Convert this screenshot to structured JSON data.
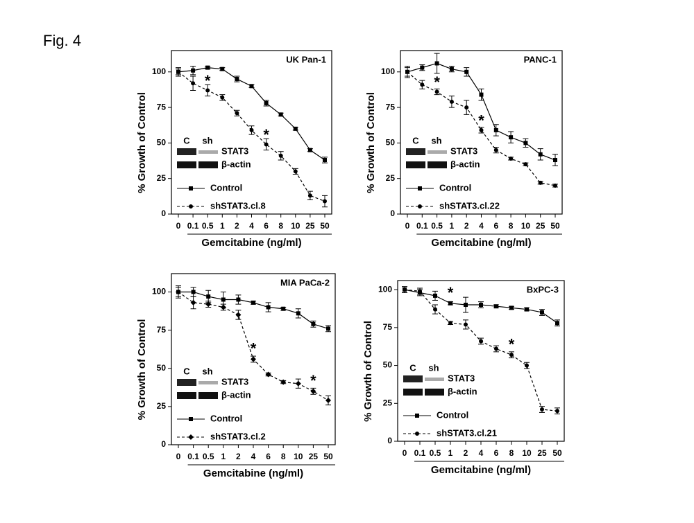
{
  "figure_label": "Fig. 4",
  "chart_data": [
    {
      "type": "line",
      "title": "UK Pan-1",
      "ylabel": "% Growth of Control",
      "xlabel": "Gemcitabine (ng/ml)",
      "categories": [
        "0",
        "0.1",
        "0.5",
        "1",
        "2",
        "4",
        "6",
        "8",
        "10",
        "25",
        "50"
      ],
      "ylim": [
        0,
        115
      ],
      "yticks": [
        0,
        25,
        50,
        75,
        100
      ],
      "series": [
        {
          "name": "Control",
          "color": "#000000",
          "marker": "square",
          "dashed": false,
          "values": [
            100,
            101,
            103,
            102,
            95,
            90,
            78,
            70,
            60,
            45,
            38
          ],
          "errors": [
            3,
            3,
            1,
            1,
            2,
            1,
            2,
            1,
            1,
            1,
            2
          ]
        },
        {
          "name": "shSTAT3.cl.8",
          "color": "#000000",
          "marker": "circle",
          "dashed": true,
          "values": [
            100,
            92,
            87,
            82,
            71,
            59,
            49,
            41,
            30,
            13,
            9
          ],
          "errors": [
            2,
            5,
            4,
            2,
            2,
            3,
            4,
            3,
            2,
            3,
            4
          ]
        }
      ],
      "annotations": [
        {
          "text": "*",
          "x": "0.5"
        },
        {
          "text": "*",
          "x": "6"
        }
      ],
      "blot": {
        "lanes": [
          "C",
          "sh"
        ],
        "bands": [
          "STAT3",
          "β-actin"
        ]
      }
    },
    {
      "type": "line",
      "title": "PANC-1",
      "ylabel": "% Growth of Control",
      "xlabel": "Gemcitabine (ng/ml)",
      "categories": [
        "0",
        "0.1",
        "0.5",
        "1",
        "2",
        "4",
        "6",
        "8",
        "10",
        "25",
        "50"
      ],
      "ylim": [
        0,
        115
      ],
      "yticks": [
        0,
        25,
        50,
        75,
        100
      ],
      "series": [
        {
          "name": "Control",
          "color": "#000000",
          "marker": "square",
          "dashed": false,
          "values": [
            100,
            103,
            106,
            102,
            100,
            84,
            59,
            54,
            50,
            42,
            38
          ],
          "errors": [
            4,
            2,
            7,
            2,
            3,
            4,
            4,
            4,
            3,
            4,
            4
          ]
        },
        {
          "name": "shSTAT3.cl.22",
          "color": "#000000",
          "marker": "circle",
          "dashed": true,
          "values": [
            100,
            91,
            86,
            79,
            75,
            59,
            45,
            39,
            35,
            22,
            20
          ],
          "errors": [
            3,
            3,
            2,
            4,
            5,
            2,
            2,
            1,
            1,
            1,
            1
          ]
        }
      ],
      "annotations": [
        {
          "text": "*",
          "x": "0.5"
        },
        {
          "text": "*",
          "x": "4"
        }
      ],
      "blot": {
        "lanes": [
          "C",
          "sh"
        ],
        "bands": [
          "STAT3",
          "β-actin"
        ]
      }
    },
    {
      "type": "line",
      "title": "MIA PaCa-2",
      "ylabel": "% Growth of Control",
      "xlabel": "Gemcitabine (ng/ml)",
      "categories": [
        "0",
        "0.1",
        "0.5",
        "1",
        "2",
        "4",
        "6",
        "8",
        "10",
        "25",
        "50"
      ],
      "ylim": [
        0,
        112
      ],
      "yticks": [
        0,
        25,
        50,
        75,
        100
      ],
      "series": [
        {
          "name": "Control",
          "color": "#000000",
          "marker": "square",
          "dashed": false,
          "values": [
            100,
            100,
            97,
            95,
            95,
            93,
            90,
            89,
            86,
            79,
            76
          ],
          "errors": [
            4,
            3,
            4,
            5,
            3,
            1,
            3,
            1,
            3,
            2,
            2
          ]
        },
        {
          "name": "shSTAT3.cl.2",
          "color": "#000000",
          "marker": "diamond",
          "dashed": true,
          "values": [
            100,
            93,
            92,
            90,
            85,
            56,
            46,
            41,
            40,
            35,
            29
          ],
          "errors": [
            3,
            4,
            2,
            2,
            3,
            2,
            1,
            1,
            3,
            2,
            3
          ]
        }
      ],
      "annotations": [
        {
          "text": "*",
          "x": "4"
        },
        {
          "text": "*",
          "x": "25"
        }
      ],
      "blot": {
        "lanes": [
          "C",
          "sh"
        ],
        "bands": [
          "STAT3",
          "β-actin"
        ]
      }
    },
    {
      "type": "line",
      "title": "BxPC-3",
      "ylabel": "% Growth of Control",
      "xlabel": "Gemcitabine (ng/ml)",
      "categories": [
        "0",
        "0.1",
        "0.5",
        "1",
        "2",
        "4",
        "6",
        "8",
        "10",
        "25",
        "50"
      ],
      "ylim": [
        0,
        106
      ],
      "yticks": [
        0,
        25,
        50,
        75,
        100
      ],
      "series": [
        {
          "name": "Control",
          "color": "#000000",
          "marker": "square",
          "dashed": false,
          "values": [
            100,
            98,
            96,
            91,
            90,
            90,
            89,
            88,
            87,
            85,
            78
          ],
          "errors": [
            2,
            2,
            3,
            1,
            5,
            2,
            1,
            1,
            1,
            2,
            2
          ]
        },
        {
          "name": "shSTAT3.cl.21",
          "color": "#000000",
          "marker": "circle",
          "dashed": true,
          "values": [
            100,
            99,
            87,
            78,
            77,
            66,
            61,
            57,
            50,
            21,
            20
          ],
          "errors": [
            2,
            2,
            3,
            1,
            3,
            2,
            2,
            2,
            2,
            2,
            2
          ]
        }
      ],
      "annotations": [
        {
          "text": "*",
          "x": "1"
        },
        {
          "text": "*",
          "x": "8"
        }
      ],
      "blot": {
        "lanes": [
          "C",
          "sh"
        ],
        "bands": [
          "STAT3",
          "β-actin"
        ]
      }
    }
  ]
}
